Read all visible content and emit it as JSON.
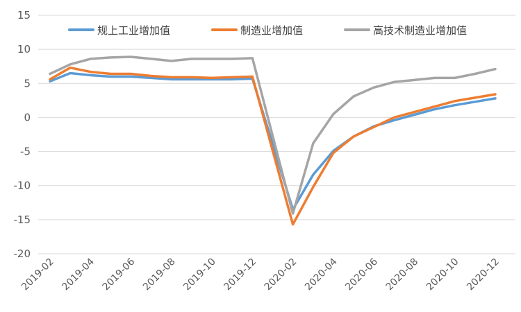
{
  "chart_data": {
    "type": "line",
    "title": "",
    "xlabel": "",
    "ylabel": "",
    "ylim": [
      -20,
      15
    ],
    "yticks": [
      15,
      10,
      5,
      0,
      -5,
      -10,
      -15,
      -20
    ],
    "grid": true,
    "legend_position": "top",
    "x": [
      "2019-02",
      "2019-03",
      "2019-04",
      "2019-05",
      "2019-06",
      "2019-07",
      "2019-08",
      "2019-09",
      "2019-10",
      "2019-11",
      "2019-12",
      "2020-01",
      "2020-02",
      "2020-03",
      "2020-04",
      "2020-05",
      "2020-06",
      "2020-07",
      "2020-08",
      "2020-09",
      "2020-10",
      "2020-11",
      "2020-12"
    ],
    "xtick_labels": [
      "2019-02",
      "2019-04",
      "2019-06",
      "2019-08",
      "2019-10",
      "2019-12",
      "2020-02",
      "2020-04",
      "2020-06",
      "2020-08",
      "2020-10",
      "2020-12"
    ],
    "series": [
      {
        "name": "规上工业增加值",
        "color": "#5b9bd5",
        "values": [
          5.3,
          6.5,
          6.2,
          6.0,
          6.0,
          5.8,
          5.6,
          5.6,
          5.6,
          5.6,
          5.7,
          null,
          -13.5,
          -8.4,
          -4.9,
          -2.8,
          -1.3,
          -0.4,
          0.4,
          1.2,
          1.8,
          2.3,
          2.8
        ]
      },
      {
        "name": "制造业增加值",
        "color": "#ed7d31",
        "values": [
          5.6,
          7.3,
          6.7,
          6.4,
          6.4,
          6.1,
          5.9,
          5.9,
          5.8,
          5.9,
          6.0,
          null,
          -15.7,
          -10.2,
          -5.2,
          -2.8,
          -1.4,
          0.0,
          0.8,
          1.6,
          2.4,
          2.9,
          3.4
        ]
      },
      {
        "name": "高技术制造业增加值",
        "color": "#a5a5a5",
        "values": [
          6.4,
          7.8,
          8.6,
          8.8,
          8.9,
          8.6,
          8.3,
          8.6,
          8.6,
          8.6,
          8.7,
          null,
          -14.1,
          -3.8,
          0.5,
          3.1,
          4.4,
          5.2,
          5.5,
          5.8,
          5.8,
          6.4,
          7.1
        ]
      }
    ]
  }
}
